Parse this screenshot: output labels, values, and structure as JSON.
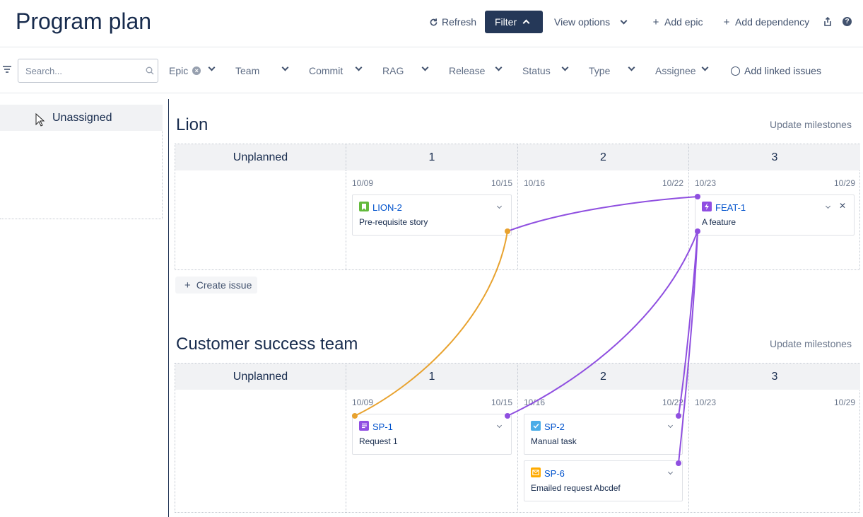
{
  "header": {
    "title": "Program plan",
    "refresh_label": "Refresh",
    "filter_label": "Filter",
    "view_options_label": "View options",
    "add_epic_label": "Add epic",
    "add_dependency_label": "Add dependency"
  },
  "filters": {
    "search_placeholder": "Search...",
    "epic": "Epic",
    "team": "Team",
    "commit": "Commit",
    "rag": "RAG",
    "release": "Release",
    "status": "Status",
    "type": "Type",
    "assignee": "Assignee",
    "add_linked_issues": "Add linked issues"
  },
  "sidebar": {
    "unassigned_label": "Unassigned"
  },
  "boards": [
    {
      "team": "Lion",
      "update_milestones": "Update milestones",
      "columns": [
        "Unplanned",
        "1",
        "2",
        "3"
      ],
      "dates": [
        [
          "10/09",
          "10/15"
        ],
        [
          "10/16",
          "10/22"
        ],
        [
          "10/23",
          "10/29"
        ]
      ],
      "create_issue": "Create issue",
      "cards": [
        {
          "key": "LION-2",
          "summary": "Pre-requisite story",
          "type": "story",
          "type_color": "#63ba3c"
        },
        {
          "key": "FEAT-1",
          "summary": "A feature",
          "type": "feature",
          "type_color": "#904ee2"
        }
      ]
    },
    {
      "team": "Customer success team",
      "update_milestones": "Update milestones",
      "columns": [
        "Unplanned",
        "1",
        "2",
        "3"
      ],
      "dates": [
        [
          "10/09",
          "10/15"
        ],
        [
          "10/16",
          "10/22"
        ],
        [
          "10/23",
          "10/29"
        ]
      ],
      "cards": [
        {
          "key": "SP-1",
          "summary": "Request 1",
          "type": "request",
          "type_color": "#904ee2"
        },
        {
          "key": "SP-2",
          "summary": "Manual task",
          "type": "task",
          "type_color": "#4bade8"
        },
        {
          "key": "SP-6",
          "summary": "Emailed request Abcdef",
          "type": "email-request",
          "type_color": "#ffab00"
        }
      ]
    }
  ],
  "dependency_colors": {
    "orange": "#e8a22e",
    "purple": "#8f4fe0"
  }
}
